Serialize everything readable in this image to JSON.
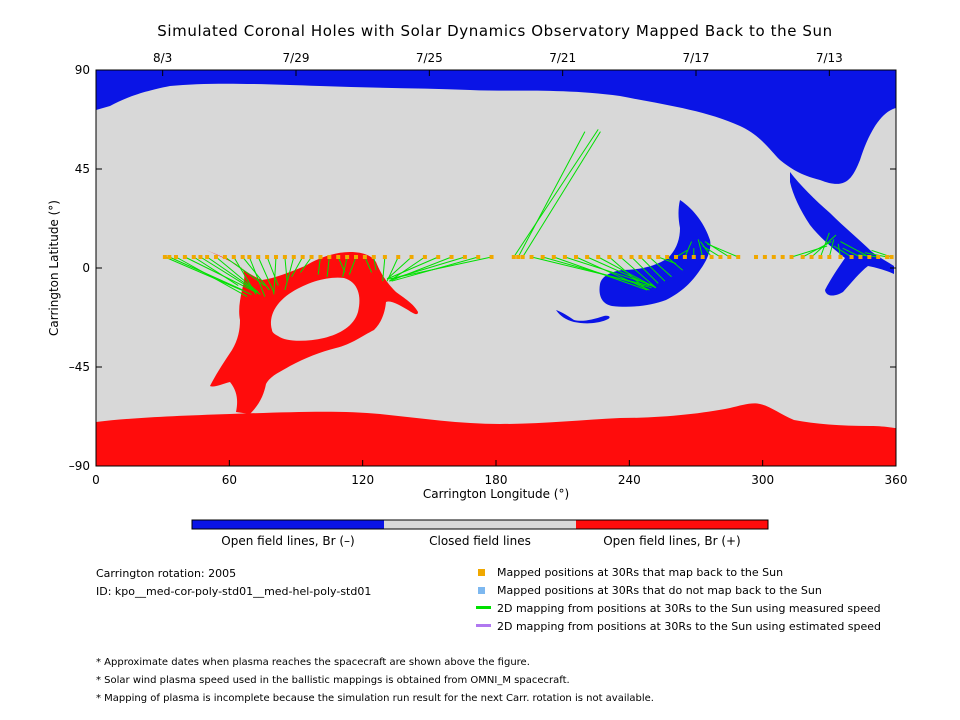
{
  "title": "Simulated Coronal Holes with Solar Dynamics Observatory Mapped Back to the Sun",
  "chart_data": {
    "type": "map",
    "xlabel": "Carrington Longitude (°)",
    "ylabel": "Carrington Latitude (°)",
    "xlim": [
      0,
      360
    ],
    "ylim": [
      -90,
      90
    ],
    "x_ticks": [
      "0",
      "60",
      "120",
      "180",
      "240",
      "300",
      "360"
    ],
    "y_ticks": [
      "90",
      "45",
      "0",
      "-45",
      "-90"
    ],
    "top_axis_dates": [
      {
        "label": "8/3",
        "lon": 30
      },
      {
        "label": "7/29",
        "lon": 90
      },
      {
        "label": "7/25",
        "lon": 150
      },
      {
        "label": "7/21",
        "lon": 210
      },
      {
        "label": "7/17",
        "lon": 270
      },
      {
        "label": "7/13",
        "lon": 330
      }
    ],
    "colorbar": [
      {
        "label": "Open field lines, Br (–)",
        "color": "#0a14e6"
      },
      {
        "label": "Closed field lines",
        "color": "#d8d8d8"
      },
      {
        "label": "Open field lines, Br (+)",
        "color": "#ff0c0c"
      }
    ],
    "mapping_lines": [
      [
        31,
        5,
        70,
        -12
      ],
      [
        33,
        5,
        66,
        -10
      ],
      [
        36,
        5,
        68,
        -13
      ],
      [
        40,
        5,
        72,
        -11
      ],
      [
        44,
        5,
        64,
        -8
      ],
      [
        47,
        5,
        74,
        -12
      ],
      [
        50,
        5,
        70,
        -9
      ],
      [
        54,
        5,
        73,
        -11
      ],
      [
        58,
        5,
        76,
        -8
      ],
      [
        62,
        5,
        72,
        -12
      ],
      [
        66,
        5,
        78,
        -10
      ],
      [
        69,
        5,
        76,
        -13
      ],
      [
        73,
        5,
        80,
        -11
      ],
      [
        77,
        5,
        82,
        -8
      ],
      [
        81,
        5,
        80,
        -12
      ],
      [
        85,
        5,
        86,
        -6
      ],
      [
        89,
        5,
        85,
        -10
      ],
      [
        93,
        5,
        88,
        -4
      ],
      [
        97,
        5,
        92,
        -2
      ],
      [
        101,
        5,
        100,
        -3
      ],
      [
        105,
        5,
        104,
        -4
      ],
      [
        109,
        5,
        112,
        -2
      ],
      [
        113,
        5,
        111,
        -4
      ],
      [
        117,
        5,
        114,
        -3
      ],
      [
        121,
        5,
        124,
        -2
      ],
      [
        125,
        5,
        126,
        -1
      ],
      [
        130,
        5,
        129,
        -6
      ],
      [
        136,
        5,
        131,
        -6
      ],
      [
        142,
        5,
        131,
        -5
      ],
      [
        148,
        5,
        132,
        -6
      ],
      [
        154,
        5,
        131,
        -5
      ],
      [
        160,
        5,
        132,
        -6
      ],
      [
        166,
        5,
        133,
        -5
      ],
      [
        172,
        5,
        133,
        -6
      ],
      [
        178,
        5,
        132,
        -5
      ],
      [
        188,
        5,
        226,
        63
      ],
      [
        190,
        5,
        220,
        62
      ],
      [
        192,
        5,
        227,
        62
      ],
      [
        196,
        5,
        249,
        -8
      ],
      [
        201,
        5,
        250,
        -9
      ],
      [
        206,
        5,
        248,
        -10
      ],
      [
        211,
        5,
        251,
        -8
      ],
      [
        216,
        5,
        249,
        -10
      ],
      [
        221,
        5,
        252,
        -9
      ],
      [
        226,
        5,
        250,
        -8
      ],
      [
        231,
        5,
        248,
        -10
      ],
      [
        236,
        5,
        252,
        -9
      ],
      [
        241,
        5,
        253,
        -7
      ],
      [
        245,
        5,
        256,
        -6
      ],
      [
        249,
        5,
        259,
        -4
      ],
      [
        253,
        5,
        261,
        2
      ],
      [
        257,
        5,
        264,
        -1
      ],
      [
        261,
        5,
        266,
        8
      ],
      [
        265,
        5,
        268,
        12
      ],
      [
        269,
        5,
        269,
        9
      ],
      [
        273,
        5,
        271,
        13
      ],
      [
        277,
        5,
        272,
        12
      ],
      [
        281,
        5,
        273,
        10
      ],
      [
        285,
        5,
        274,
        12
      ],
      [
        289,
        5,
        275,
        11
      ],
      [
        313,
        5,
        329,
        10
      ],
      [
        318,
        5,
        331,
        12
      ],
      [
        322,
        5,
        333,
        15
      ],
      [
        326,
        5,
        330,
        16
      ],
      [
        330,
        5,
        332,
        13
      ],
      [
        335,
        5,
        334,
        11
      ],
      [
        340,
        5,
        332,
        10
      ],
      [
        344,
        5,
        336,
        9
      ],
      [
        348,
        5,
        335,
        12
      ],
      [
        352,
        5,
        343,
        6
      ],
      [
        356,
        5,
        346,
        7
      ],
      [
        358,
        5,
        349,
        8
      ]
    ],
    "mapped_positions_lon": [
      31,
      33,
      36,
      40,
      44,
      47,
      50,
      54,
      58,
      62,
      66,
      69,
      73,
      77,
      81,
      85,
      89,
      93,
      97,
      101,
      105,
      109,
      113,
      117,
      121,
      125,
      130,
      136,
      142,
      148,
      154,
      160,
      166,
      172,
      178,
      188,
      190,
      192,
      196,
      201,
      206,
      211,
      216,
      221,
      226,
      231,
      236,
      241,
      245,
      249,
      253,
      257,
      261,
      265,
      269,
      273,
      277,
      281,
      285,
      289,
      297,
      301,
      305,
      309,
      313,
      318,
      322,
      326,
      330,
      335,
      340,
      344,
      348,
      352,
      356,
      358
    ],
    "mapped_latitude": 5
  },
  "info": {
    "rotation": "Carrington rotation: 2005",
    "id": "ID: kpo__med-cor-poly-std01__med-hel-poly-std01"
  },
  "legend": [
    {
      "label": "Mapped positions at 30Rs that map back to the Sun",
      "color": "#f0a800",
      "kind": "square"
    },
    {
      "label": "Mapped positions at 30Rs that do not map back to the Sun",
      "color": "#7db8f0",
      "kind": "square"
    },
    {
      "label": "2D mapping from positions at 30Rs to the Sun using measured speed",
      "color": "#00e000",
      "kind": "line"
    },
    {
      "label": "2D mapping from positions at 30Rs to the Sun using estimated speed",
      "color": "#b078f0",
      "kind": "line"
    }
  ],
  "notes": [
    "* Approximate dates when plasma reaches the spacecraft are shown above the figure.",
    "* Solar wind plasma speed used in the ballistic mappings is obtained from OMNI_M spacecraft.",
    "* Mapping of plasma is incomplete because the simulation run result for the next Carr. rotation is not available."
  ]
}
